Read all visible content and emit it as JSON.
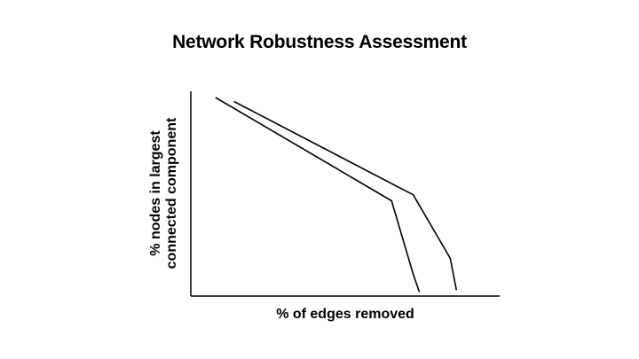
{
  "slide": {
    "title": "Network Robustness Assessment"
  },
  "chart_data": {
    "type": "line",
    "title": "Network Robustness Assessment",
    "xlabel": "% of edges removed",
    "ylabel": [
      "% nodes in largest",
      "connected component"
    ],
    "xlim": [
      0,
      100
    ],
    "ylim": [
      0,
      100
    ],
    "grid": false,
    "legend": "none",
    "ticks": false,
    "line_color": "#000000",
    "series": [
      {
        "x": [
          8,
          65,
          72,
          74
        ],
        "y": [
          100,
          48,
          11,
          2
        ]
      },
      {
        "x": [
          14,
          72,
          84,
          86
        ],
        "y": [
          98,
          51,
          19,
          3
        ]
      }
    ]
  }
}
